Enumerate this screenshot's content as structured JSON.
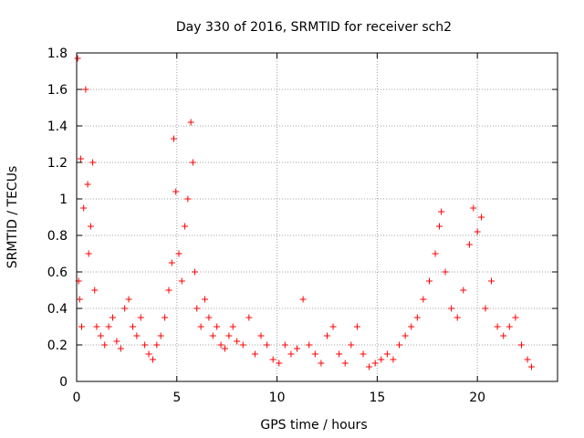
{
  "chart_data": {
    "type": "scatter",
    "title": "Day 330 of 2016, SRMTID for receiver sch2",
    "xlabel": "GPS time / hours",
    "ylabel": "SRMTID / TECUs",
    "xlim": [
      0,
      24
    ],
    "ylim": [
      0,
      1.8
    ],
    "grid": true,
    "marker": "+",
    "color": "#ff0000",
    "xticks": [
      0,
      5,
      10,
      15,
      20
    ],
    "yticks": [
      0,
      0.2,
      0.4,
      0.6,
      0.8,
      1,
      1.2,
      1.4,
      1.6,
      1.8
    ],
    "xtick_labels": [
      "0",
      "5",
      "10",
      "15",
      "20"
    ],
    "ytick_labels": [
      "0",
      "0.2",
      "0.4",
      "0.6",
      "0.8",
      "1",
      "1.2",
      "1.4",
      "1.6",
      "1.8"
    ],
    "series": [
      {
        "name": "SRMTID",
        "x": [
          0.05,
          0.1,
          0.15,
          0.2,
          0.25,
          0.35,
          0.45,
          0.55,
          0.6,
          0.7,
          0.8,
          0.9,
          1.0,
          1.2,
          1.4,
          1.6,
          1.8,
          2.0,
          2.2,
          2.4,
          2.6,
          2.8,
          3.0,
          3.2,
          3.4,
          3.6,
          3.8,
          4.0,
          4.2,
          4.4,
          4.6,
          4.75,
          4.85,
          4.95,
          5.1,
          5.25,
          5.4,
          5.55,
          5.7,
          5.8,
          5.9,
          6.0,
          6.2,
          6.4,
          6.6,
          6.8,
          7.0,
          7.2,
          7.4,
          7.6,
          7.8,
          8.0,
          8.3,
          8.6,
          8.9,
          9.2,
          9.5,
          9.8,
          10.1,
          10.4,
          10.7,
          11.0,
          11.3,
          11.6,
          11.9,
          12.2,
          12.5,
          12.8,
          13.1,
          13.4,
          13.7,
          14.0,
          14.3,
          14.6,
          14.9,
          15.2,
          15.5,
          15.8,
          16.1,
          16.4,
          16.7,
          17.0,
          17.3,
          17.6,
          17.9,
          18.1,
          18.2,
          18.4,
          18.7,
          19.0,
          19.3,
          19.6,
          19.8,
          20.0,
          20.2,
          20.4,
          20.7,
          21.0,
          21.3,
          21.6,
          21.9,
          22.2,
          22.5,
          22.7
        ],
        "y": [
          1.77,
          0.55,
          0.45,
          1.22,
          0.3,
          0.95,
          1.6,
          1.08,
          0.7,
          0.85,
          1.2,
          0.5,
          0.3,
          0.25,
          0.2,
          0.3,
          0.35,
          0.22,
          0.18,
          0.4,
          0.45,
          0.3,
          0.25,
          0.35,
          0.2,
          0.15,
          0.12,
          0.2,
          0.25,
          0.35,
          0.5,
          0.65,
          1.33,
          1.04,
          0.7,
          0.55,
          0.85,
          1.0,
          1.42,
          1.2,
          0.6,
          0.4,
          0.3,
          0.45,
          0.35,
          0.25,
          0.3,
          0.2,
          0.18,
          0.25,
          0.3,
          0.22,
          0.2,
          0.35,
          0.15,
          0.25,
          0.2,
          0.12,
          0.1,
          0.2,
          0.15,
          0.18,
          0.45,
          0.2,
          0.15,
          0.1,
          0.25,
          0.3,
          0.15,
          0.1,
          0.2,
          0.3,
          0.15,
          0.08,
          0.1,
          0.12,
          0.15,
          0.12,
          0.2,
          0.25,
          0.3,
          0.35,
          0.45,
          0.55,
          0.7,
          0.85,
          0.93,
          0.6,
          0.4,
          0.35,
          0.5,
          0.75,
          0.95,
          0.82,
          0.9,
          0.4,
          0.55,
          0.3,
          0.25,
          0.3,
          0.35,
          0.2,
          0.12,
          0.08
        ]
      }
    ]
  }
}
